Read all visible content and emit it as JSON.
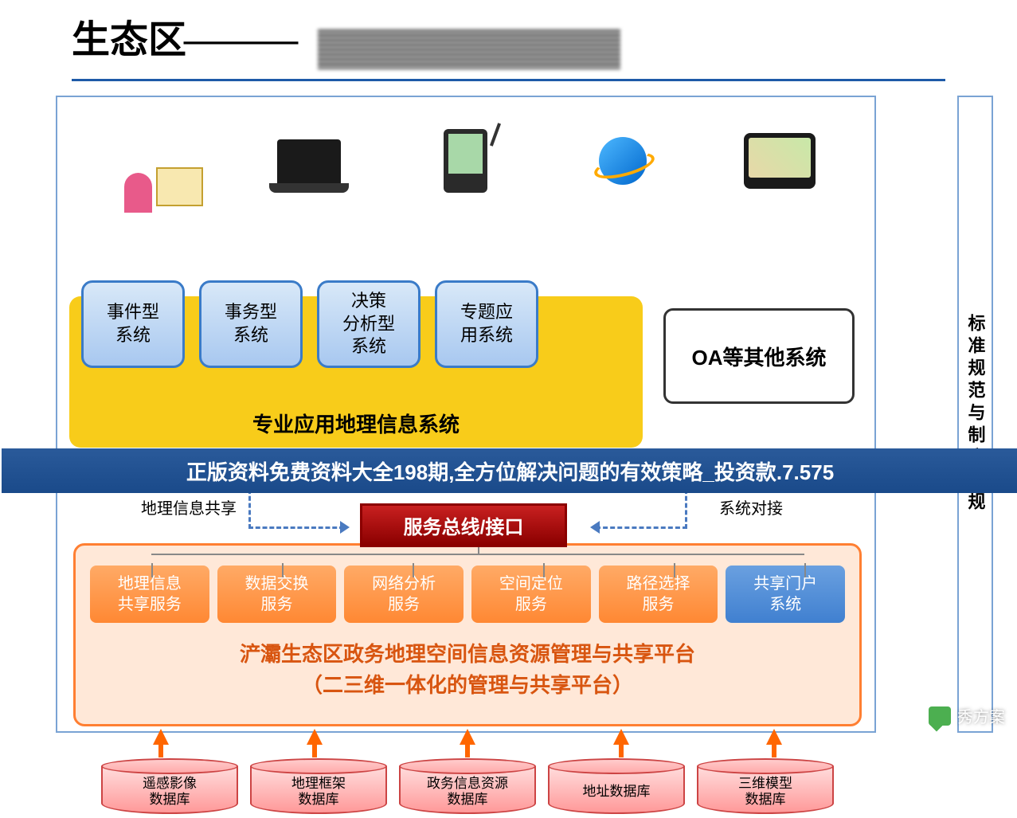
{
  "header": {
    "title": "生态区",
    "dash": "———"
  },
  "side_panel": "标准规范与制度法规",
  "top_systems": [
    {
      "label": "事件型\n系统"
    },
    {
      "label": "事务型\n系统"
    },
    {
      "label": "决策\n分析型\n系统"
    },
    {
      "label": "专题应\n用系统"
    }
  ],
  "yellow_title": "专业应用地理信息系统",
  "oa_label": "OA等其他系统",
  "banner": "正版资料免费资料大全198期,全方位解决问题的有效策略_投资款.7.575",
  "label_share": "地理信息共享",
  "label_dock": "系统对接",
  "bus": "服务总线/接口",
  "services": [
    {
      "label": "地理信息\n共享服务",
      "kind": "orange"
    },
    {
      "label": "数据交换\n服务",
      "kind": "orange"
    },
    {
      "label": "网络分析\n服务",
      "kind": "orange"
    },
    {
      "label": "空间定位\n服务",
      "kind": "orange"
    },
    {
      "label": "路径选择\n服务",
      "kind": "orange"
    },
    {
      "label": "共享门户\n系统",
      "kind": "blue"
    }
  ],
  "orange_title_1": "浐灞生态区政务地理空间信息资源管理与共享平台",
  "orange_title_2": "（二三维一体化的管理与共享平台）",
  "databases": [
    "遥感影像\n数据库",
    "地理框架\n数据库",
    "政务信息资源\n数据库",
    "地址数据库",
    "三维模型\n数据库"
  ],
  "watermark": "秀方案",
  "colors": {
    "header_rule": "#1e5aa8",
    "panel_border": "#7aa3d4",
    "yellow_bg": "#f8cc1a",
    "bluebox_border": "#3a7bc8",
    "banner_bg": "#1a4a8a",
    "bus_bg": "#8b0000",
    "orange_border": "#ff7f32",
    "orange_text": "#d85510",
    "svc_orange": "#ff8833",
    "svc_blue": "#4080d0",
    "db_border": "#cc4444"
  }
}
